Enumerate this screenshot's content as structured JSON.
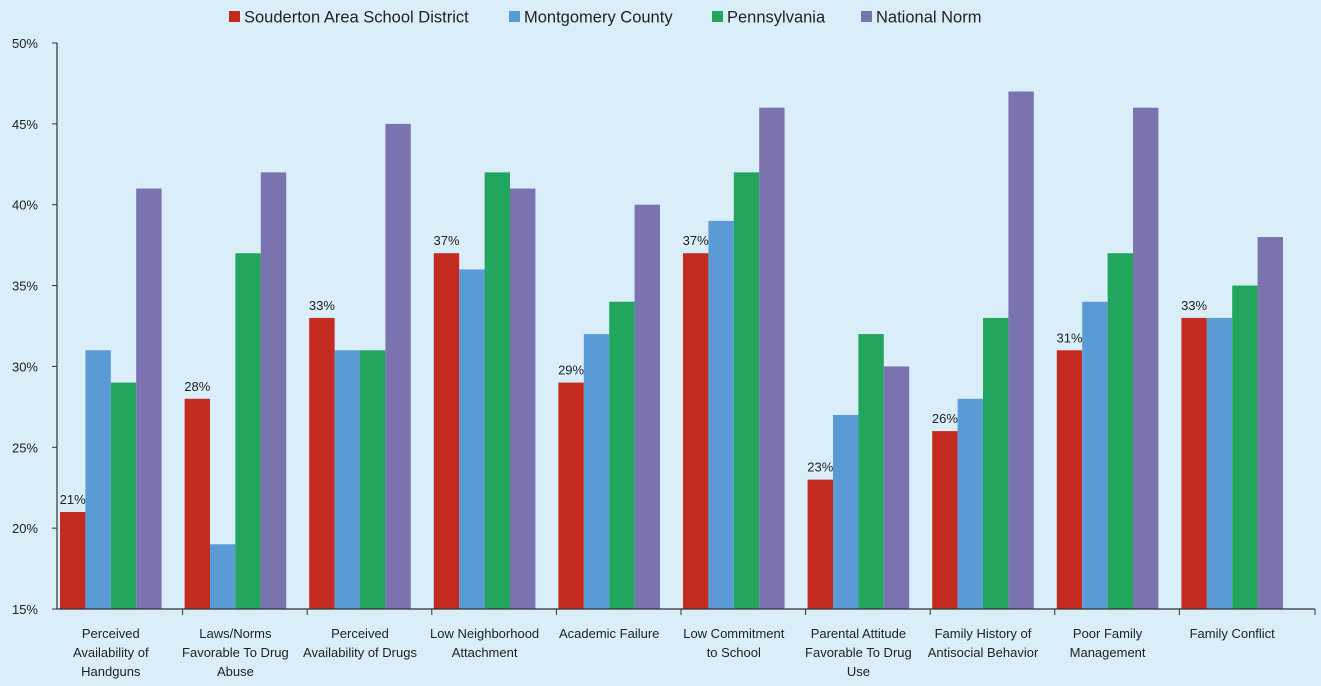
{
  "chart_data": {
    "type": "bar",
    "title": "",
    "xlabel": "",
    "ylabel": "",
    "ylim": [
      15,
      50
    ],
    "yticks": [
      "15%",
      "20%",
      "25%",
      "30%",
      "35%",
      "40%",
      "45%",
      "50%"
    ],
    "legend_position": "top",
    "grid": false,
    "categories": [
      "Perceived Availability of Handguns",
      "Laws/Norms Favorable To Drug Abuse",
      "Perceived Availability of Drugs",
      "Low Neighborhood Attachment",
      "Academic Failure",
      "Low Commitment to School",
      "Parental Attitude Favorable To Drug Use",
      "Family History of Antisocial Behavior",
      "Poor Family Management",
      "Family Conflict"
    ],
    "category_lines": [
      [
        "Perceived",
        "Availability of",
        "Handguns"
      ],
      [
        "Laws/Norms",
        "Favorable To Drug",
        "Abuse"
      ],
      [
        "Perceived",
        "Availability of Drugs"
      ],
      [
        "Low Neighborhood",
        "Attachment"
      ],
      [
        "Academic Failure"
      ],
      [
        "Low Commitment",
        "to School"
      ],
      [
        "Parental Attitude",
        "Favorable To Drug",
        "Use"
      ],
      [
        "Family History of",
        "Antisocial Behavior"
      ],
      [
        "Poor Family",
        "Management"
      ],
      [
        "Family Conflict"
      ]
    ],
    "series": [
      {
        "name": "Souderton Area School District",
        "color": "#c32b21",
        "values": [
          21,
          28,
          33,
          37,
          29,
          37,
          23,
          26,
          31,
          33
        ]
      },
      {
        "name": "Montgomery County",
        "color": "#5b9bd5",
        "values": [
          31,
          19,
          31,
          36,
          32,
          39,
          27,
          28,
          34,
          33
        ]
      },
      {
        "name": "Pennsylvania",
        "color": "#22a55c",
        "values": [
          29,
          37,
          31,
          42,
          34,
          42,
          32,
          33,
          37,
          35
        ]
      },
      {
        "name": "National Norm",
        "color": "#7b72b0",
        "values": [
          41,
          42,
          45,
          41,
          40,
          46,
          30,
          47,
          46,
          38
        ]
      }
    ],
    "data_labels": [
      "21%",
      "28%",
      "33%",
      "37%",
      "29%",
      "37%",
      "23%",
      "26%",
      "31%",
      "33%"
    ]
  }
}
